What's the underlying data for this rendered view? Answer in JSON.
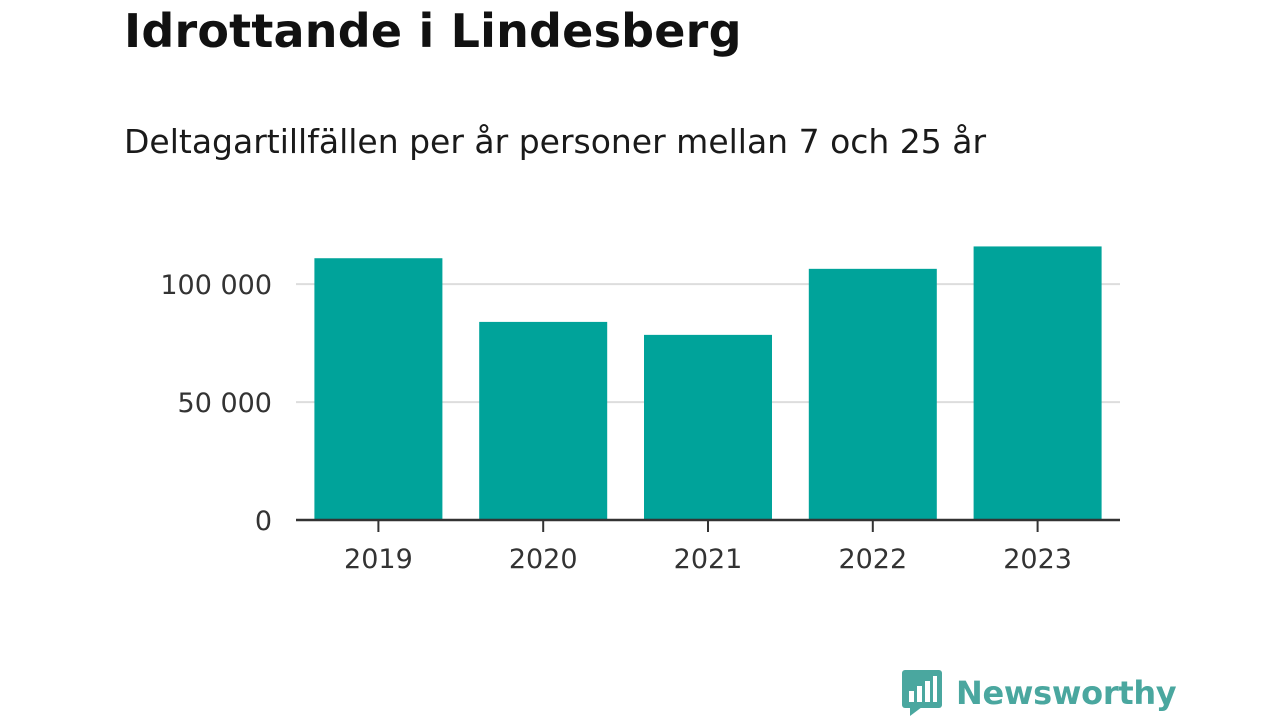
{
  "header": {
    "title": "Idrottande i Lindesberg",
    "subtitle": "Deltagartillfällen per år personer mellan 7 och 25 år"
  },
  "brand": {
    "name": "Newsworthy",
    "color": "#4aa79f",
    "icon": "bar-chart-speech-bubble-icon"
  },
  "chart_data": {
    "type": "bar",
    "title": "Idrottande i Lindesberg",
    "subtitle": "Deltagartillfällen per år personer mellan 7 och 25 år",
    "xlabel": "",
    "ylabel": "",
    "categories": [
      "2019",
      "2020",
      "2021",
      "2022",
      "2023"
    ],
    "values": [
      111000,
      84000,
      78500,
      106500,
      116000
    ],
    "ylim": [
      0,
      120000
    ],
    "yticks": [
      0,
      50000,
      100000
    ],
    "ytick_labels": [
      "0",
      "50 000",
      "100 000"
    ],
    "grid": true,
    "legend": "none",
    "bar_color": "#00a39a",
    "grid_color": "#dddddd",
    "axis_color": "#333333"
  }
}
